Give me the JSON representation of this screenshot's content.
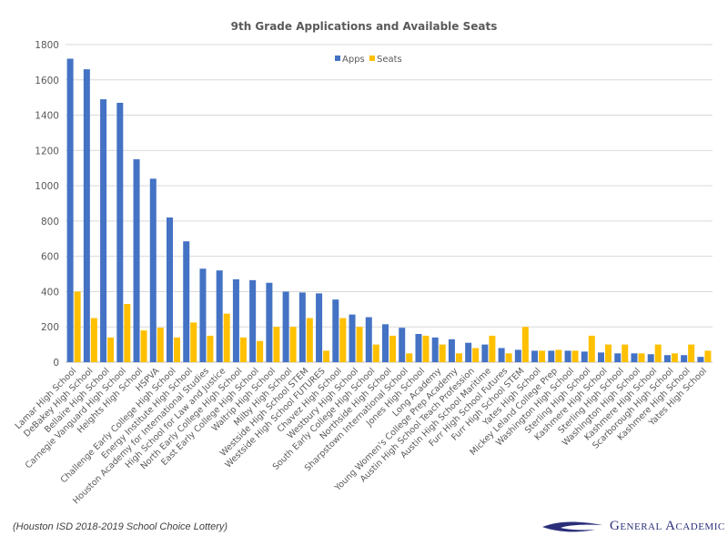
{
  "chart_data": {
    "type": "bar",
    "title": "9th Grade Applications and Available Seats",
    "xlabel": "",
    "ylabel": "",
    "ylim": [
      0,
      1800
    ],
    "yticks": [
      0,
      200,
      400,
      600,
      800,
      1000,
      1200,
      1400,
      1600,
      1800
    ],
    "grid": true,
    "legend_position": "top-center",
    "categories": [
      "Lamar High School",
      "DeBakey High School",
      "Bellaire High School",
      "Carnegie Vanguard High School",
      "Heights High School",
      "HSPVA",
      "Challenge Early College High School",
      "Energy Institute High School",
      "Houston Academy for International Studies",
      "High School for Law and Justice",
      "North Early College High School",
      "East Early College High School",
      "Waltrip High School",
      "Milby High School",
      "Westside High School STEM",
      "Westside High School FUTURES",
      "Chavez High School",
      "Westbury High School",
      "South Early College High School",
      "Northside High School",
      "Sharpstown International School",
      "Jones High School",
      "Long Academy",
      "Young Women's College Prep Academy",
      "Austin High School Teach Profession",
      "Austin High School Maritime",
      "Furr High School Futures",
      "Furr High School STEM",
      "Yates High School",
      "Mickey Leland College Prep",
      "Washington High School",
      "Sterling High School",
      "Kashmere High School",
      "Sterling High School",
      "Washington High School",
      "Kashmere High School",
      "Scarborough High School",
      "Kashmere High School",
      "Yates High School"
    ],
    "series": [
      {
        "name": "Apps",
        "color": "#4472C4",
        "values": [
          1720,
          1660,
          1490,
          1470,
          1150,
          1040,
          820,
          685,
          530,
          520,
          470,
          465,
          450,
          400,
          395,
          390,
          355,
          270,
          255,
          215,
          195,
          160,
          140,
          130,
          110,
          100,
          80,
          70,
          65,
          65,
          65,
          60,
          55,
          50,
          50,
          45,
          40,
          40,
          30
        ]
      },
      {
        "name": "Seats",
        "color": "#FFC000",
        "values": [
          400,
          250,
          140,
          330,
          180,
          195,
          140,
          225,
          150,
          275,
          140,
          120,
          200,
          200,
          250,
          65,
          250,
          200,
          100,
          150,
          50,
          150,
          100,
          50,
          80,
          150,
          50,
          200,
          65,
          70,
          65,
          150,
          100,
          100,
          50,
          100,
          50,
          100,
          65
        ]
      }
    ]
  },
  "footnote": "(Houston ISD 2018-2019 School Choice Lottery)",
  "logo": {
    "text": "General Academic"
  }
}
